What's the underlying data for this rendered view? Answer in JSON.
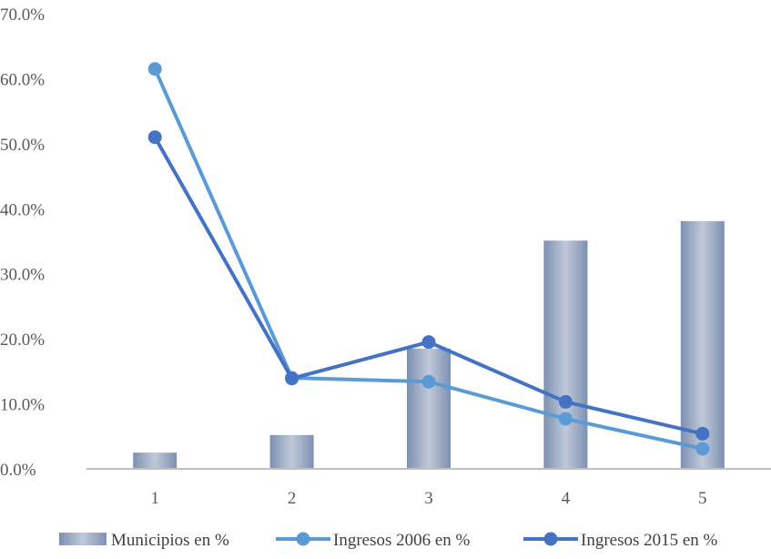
{
  "chart_data": {
    "type": "bar",
    "categories": [
      "1",
      "2",
      "3",
      "4",
      "5"
    ],
    "series": [
      {
        "name": "Municipios en %",
        "kind": "bar",
        "values": [
          2.5,
          5.2,
          18.5,
          35.1,
          38.1
        ],
        "color": "#9aa9c4"
      },
      {
        "name": "Ingresos 2006 en %",
        "kind": "line",
        "values": [
          61.5,
          14.0,
          13.4,
          7.7,
          3.1
        ],
        "color": "#5b9bd5"
      },
      {
        "name": "Ingresos 2015 en %",
        "kind": "line",
        "values": [
          51.0,
          13.9,
          19.5,
          10.3,
          5.4
        ],
        "color": "#4472c4"
      }
    ],
    "yticks": [
      "0.0%",
      "10.0%",
      "20.0%",
      "30.0%",
      "40.0%",
      "50.0%",
      "60.0%",
      "70.0%"
    ],
    "ylim": [
      0,
      70
    ],
    "xlabel": "",
    "ylabel": "",
    "title": "",
    "grid": false,
    "legend_position": "bottom"
  }
}
